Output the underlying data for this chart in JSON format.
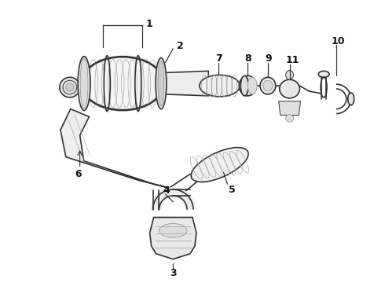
{
  "bg_color": "#ffffff",
  "line_color": "#333333",
  "text_color": "#111111",
  "figsize": [
    4.9,
    3.6
  ],
  "dpi": 100,
  "lw_main": 1.2,
  "lw_thin": 0.7
}
